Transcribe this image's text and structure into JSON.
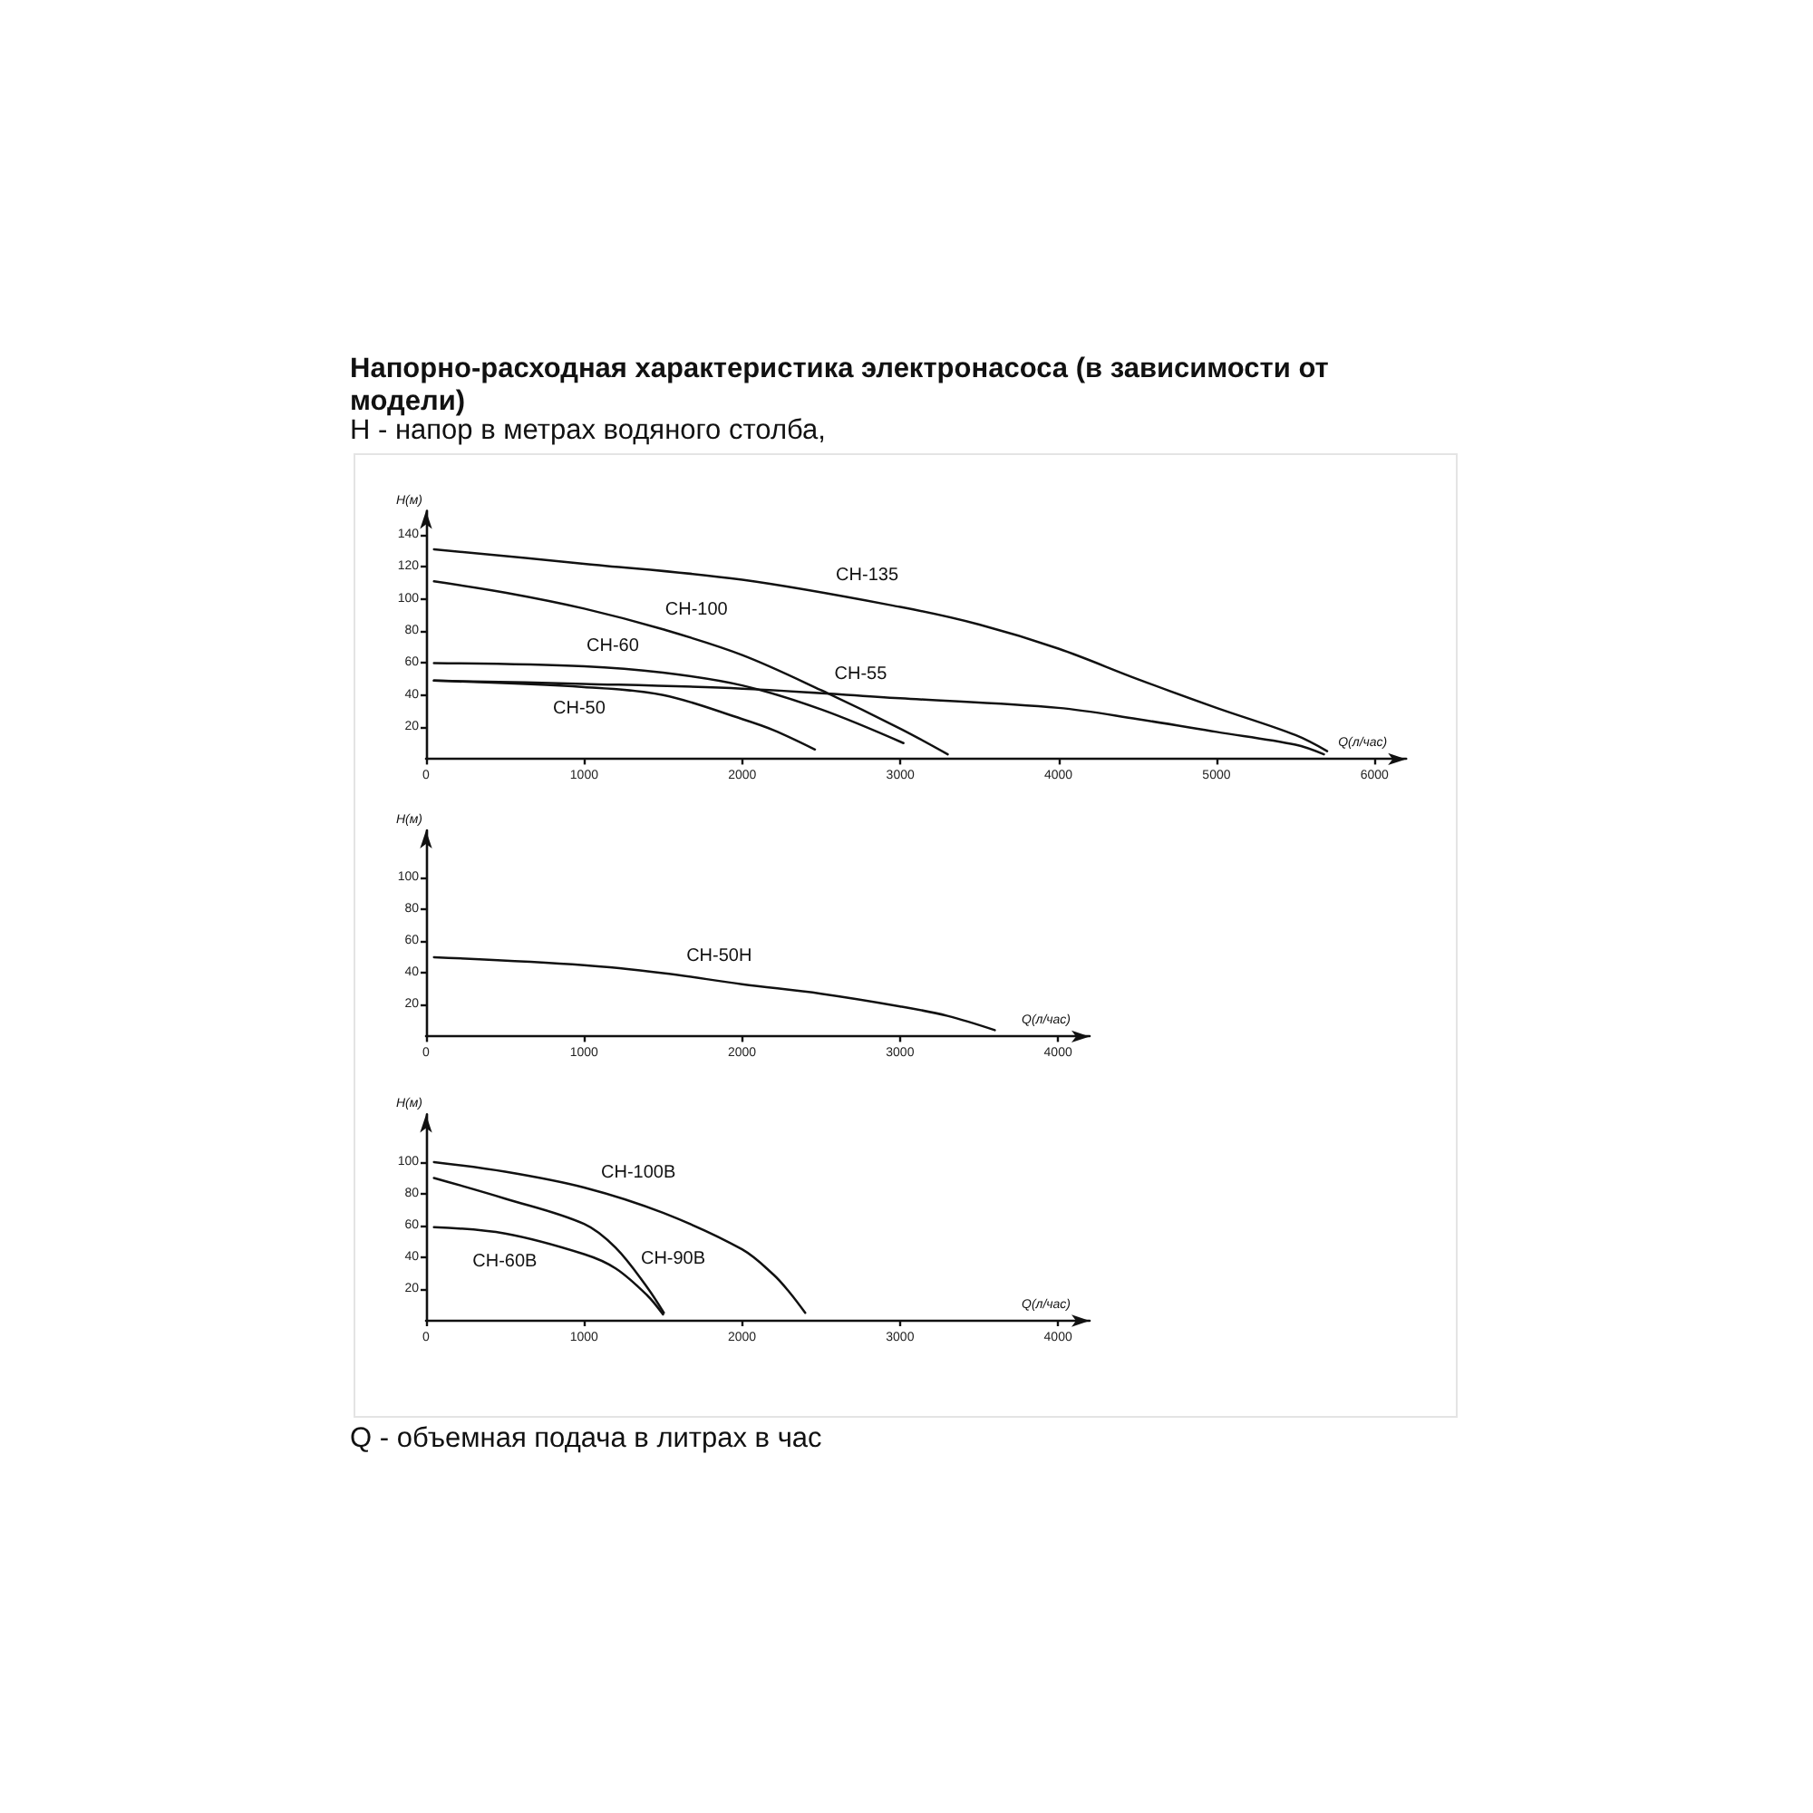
{
  "chart_data": [
    {
      "type": "line",
      "title": "Напорно-расходная характеристика электронасоса (в зависимости от модели)",
      "subtitle": "H - напор в метрах водяного столба,",
      "xlabel": "Q(л/час)",
      "ylabel": "H(м)",
      "xlim": [
        0,
        6200
      ],
      "ylim": [
        0,
        155
      ],
      "xticks": [
        0,
        1000,
        2000,
        3000,
        4000,
        5000,
        6000
      ],
      "yticks": [
        20,
        40,
        60,
        80,
        100,
        120,
        140
      ],
      "marker": "none",
      "series": [
        {
          "name": "CH-135",
          "color": "#111111",
          "x": [
            50,
            1000,
            2000,
            3000,
            3500,
            4000,
            4500,
            5000,
            5500,
            5700
          ],
          "values": [
            131,
            122,
            112,
            95,
            84,
            69,
            50,
            32,
            15,
            5
          ]
        },
        {
          "name": "CH-100",
          "color": "#111111",
          "x": [
            50,
            500,
            1000,
            1500,
            2000,
            2500,
            3000,
            3300
          ],
          "values": [
            111,
            104,
            94,
            81,
            65,
            43,
            19,
            3
          ]
        },
        {
          "name": "CH-60",
          "color": "#111111",
          "x": [
            50,
            1000,
            1500,
            2000,
            2500,
            3020
          ],
          "values": [
            60,
            58,
            54,
            46,
            31,
            10
          ]
        },
        {
          "name": "CH-50",
          "color": "#111111",
          "x": [
            50,
            1000,
            1500,
            2000,
            2200,
            2460
          ],
          "values": [
            49,
            45,
            40,
            25,
            18,
            6
          ]
        },
        {
          "name": "CH-55",
          "color": "#111111",
          "x": [
            50,
            1000,
            2000,
            3000,
            4000,
            4500,
            5000,
            5500,
            5680
          ],
          "values": [
            49,
            47,
            44,
            38,
            32,
            25,
            17,
            9,
            3
          ]
        }
      ]
    },
    {
      "type": "line",
      "xlabel": "Q(л/час)",
      "ylabel": "H(м)",
      "xlim": [
        0,
        4200
      ],
      "ylim": [
        0,
        130
      ],
      "xticks": [
        0,
        1000,
        2000,
        3000,
        4000
      ],
      "yticks": [
        20,
        40,
        60,
        80,
        100
      ],
      "marker": "none",
      "series": [
        {
          "name": "CH-50H",
          "color": "#111111",
          "x": [
            50,
            1000,
            1500,
            2000,
            2500,
            3000,
            3300,
            3600
          ],
          "values": [
            50,
            45,
            40,
            33,
            27,
            19,
            13,
            4
          ]
        }
      ]
    },
    {
      "type": "line",
      "xlabel": "Q(л/час)",
      "ylabel": "H(м)",
      "xlim": [
        0,
        4200
      ],
      "ylim": [
        0,
        130
      ],
      "xticks": [
        0,
        1000,
        2000,
        3000,
        4000
      ],
      "yticks": [
        20,
        40,
        60,
        80,
        100
      ],
      "marker": "none",
      "annotations": [
        "Q - объемная подача в литрах в час"
      ],
      "series": [
        {
          "name": "CH-100B",
          "color": "#111111",
          "x": [
            50,
            500,
            1000,
            1500,
            2000,
            2200,
            2300,
            2400
          ],
          "values": [
            100,
            94,
            84,
            68,
            45,
            29,
            18,
            5
          ]
        },
        {
          "name": "CH-90B",
          "color": "#111111",
          "x": [
            50,
            500,
            1000,
            1200,
            1400,
            1505
          ],
          "values": [
            90,
            77,
            61,
            46,
            21,
            5
          ]
        },
        {
          "name": "CH-60B",
          "color": "#111111",
          "x": [
            50,
            500,
            1000,
            1200,
            1400,
            1500
          ],
          "values": [
            59,
            55,
            42,
            33,
            16,
            4
          ]
        }
      ]
    }
  ]
}
